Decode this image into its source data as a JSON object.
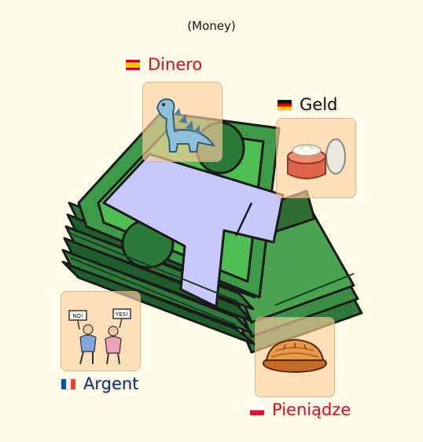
{
  "title": "(Money)",
  "words": {
    "spanish": {
      "text": "Dinero",
      "color": "#c0182c",
      "flag": "spain-flag-icon",
      "picture": "dinosaur-icon"
    },
    "german": {
      "text": "Geld",
      "color": "#111111",
      "flag": "germany-flag-icon",
      "picture": "cream-jar-icon"
    },
    "french": {
      "text": "Argent",
      "color": "#0f2d6b",
      "flag": "france-flag-icon",
      "picture": "arguing-people-icon"
    },
    "polish": {
      "text": "Pieniądze",
      "color": "#c0182c",
      "flag": "poland-flag-icon",
      "picture": "pie-icon"
    }
  },
  "sign_left": "NO!",
  "sign_right": "YES!"
}
